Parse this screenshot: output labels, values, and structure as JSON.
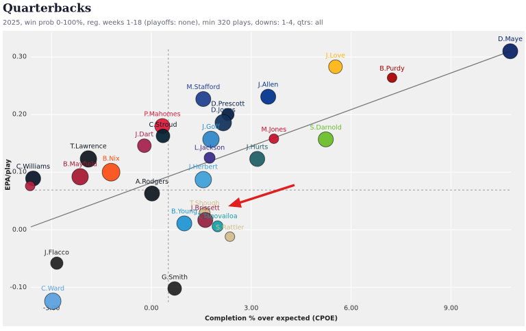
{
  "chart_data": {
    "type": "scatter",
    "title": "Quarterbacks",
    "subtitle": "2025, win prob 0-100%, reg. weeks 1-18 (playoffs: none), min 320 plays, downs: 1-4, qtrs: all",
    "xlabel": "Completion % over expected (CPOE)",
    "ylabel": "EPA/play",
    "xlim": [
      -3.62,
      10.8
    ],
    "ylim": [
      -0.127,
      0.343
    ],
    "xticks": [
      {
        "value": -3,
        "label": "-3.00"
      },
      {
        "value": 0,
        "label": "0.00"
      },
      {
        "value": 3,
        "label": "3.00"
      },
      {
        "value": 6,
        "label": "6.00"
      },
      {
        "value": 9,
        "label": "9.00"
      }
    ],
    "yticks": [
      {
        "value": -0.1,
        "label": "-0.10"
      },
      {
        "value": 0,
        "label": "0.00"
      },
      {
        "value": 0.1,
        "label": "0.10"
      },
      {
        "value": 0.2,
        "label": "0.20"
      },
      {
        "value": 0.3,
        "label": "0.30"
      }
    ],
    "grid": true,
    "labels": [
      "D.Maye",
      "J.Love",
      "B.Purdy",
      "M.Stafford",
      "J.Allen",
      "D.Prescott",
      "D.Jones",
      "P.Mahomes",
      "C.Stroud",
      "J.Goff",
      "M.Jones",
      "S.Darnold",
      "J.Dart",
      "L.Jackson",
      "J.Hurts",
      "T.Lawrence",
      "B.Nix",
      "B.Mayfield",
      "C.Williams",
      null,
      "J.Herbert",
      "A.Rodgers",
      "T.Shough",
      "J.Brissett",
      "T.Tagovailoa",
      "S.Rattler",
      "B.Young",
      "J.Flacco",
      "G.Smith",
      "C.Ward"
    ],
    "x": [
      10.78,
      5.53,
      7.23,
      1.56,
      3.51,
      2.3,
      2.16,
      0.33,
      0.35,
      1.79,
      3.68,
      5.24,
      -0.21,
      1.75,
      3.18,
      -1.89,
      -1.21,
      -2.14,
      -3.55,
      -3.64,
      1.56,
      0.02,
      1.6,
      1.62,
      1.99,
      2.36,
      0.99,
      -2.84,
      0.7,
      -2.96
    ],
    "y": [
      0.31,
      0.283,
      0.264,
      0.227,
      0.231,
      0.2,
      0.186,
      0.18,
      0.163,
      0.157,
      0.158,
      0.157,
      0.146,
      0.125,
      0.123,
      0.123,
      0.1,
      0.092,
      0.089,
      0.076,
      0.087,
      0.063,
      0.029,
      0.017,
      0.006,
      -0.012,
      0.011,
      -0.058,
      -0.102,
      -0.124
    ],
    "sizes": [
      11,
      10,
      7,
      11,
      11,
      9,
      12,
      11,
      10,
      12,
      7,
      11,
      10,
      8,
      11,
      12,
      13,
      12,
      11,
      7,
      12,
      11,
      8,
      11,
      8,
      7,
      11,
      9,
      10,
      12
    ],
    "colors": [
      "#0b2265",
      "#ffb612",
      "#aa0000",
      "#1f3f8f",
      "#00338d",
      "#041e42",
      "#12315a",
      "#e31837",
      "#03202f",
      "#2e86c8",
      "#c8102e",
      "#69be28",
      "#a5214e",
      "#3a2a8a",
      "#1f5f66",
      "#101820",
      "#fb4f14",
      "#a71930",
      "#0b162a",
      "#b0233f",
      "#3da0d8",
      "#101820",
      "#d3bc8d",
      "#97233f",
      "#15a0a8",
      "#d3bc8d",
      "#1e95d3",
      "#222222",
      "#222222",
      "#5aa0e0"
    ],
    "trendline": {
      "x": [
        -3.62,
        10.78
      ],
      "y": [
        0.005,
        0.31
      ]
    },
    "reference_lines": {
      "x": 0.51,
      "y": 0.069
    }
  }
}
